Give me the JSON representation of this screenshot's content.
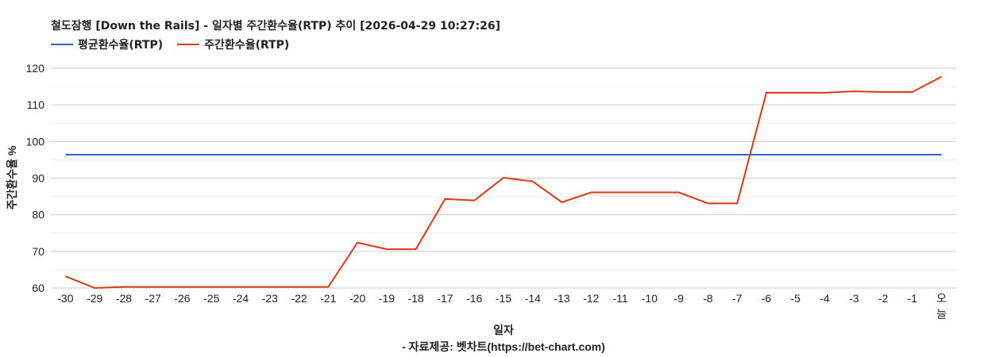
{
  "chart_data": {
    "type": "line",
    "title": "철도잠행 [Down the Rails] - 일자별 주간환수율(RTP) 추이 [2026-04-29 10:27:26]",
    "xlabel": "일자",
    "source": "- 자료제공: 벳차트(https://bet-chart.com)",
    "ylabel": "주간환수율 %",
    "ylim": [
      60,
      120
    ],
    "yticks": [
      60,
      70,
      80,
      90,
      100,
      110,
      120
    ],
    "grid": true,
    "legend": "top-left",
    "categories": [
      "-30",
      "-29",
      "-28",
      "-27",
      "-26",
      "-25",
      "-24",
      "-23",
      "-22",
      "-21",
      "-20",
      "-19",
      "-18",
      "-17",
      "-16",
      "-15",
      "-14",
      "-13",
      "-12",
      "-11",
      "-10",
      "-9",
      "-8",
      "-7",
      "-6",
      "-5",
      "-4",
      "-3",
      "-2",
      "-1",
      "오늘"
    ],
    "series": [
      {
        "name": "평균환수율(RTP)",
        "color": "#3366cc",
        "values": [
          96.4,
          96.4,
          96.4,
          96.4,
          96.4,
          96.4,
          96.4,
          96.4,
          96.4,
          96.4,
          96.4,
          96.4,
          96.4,
          96.4,
          96.4,
          96.4,
          96.4,
          96.4,
          96.4,
          96.4,
          96.4,
          96.4,
          96.4,
          96.4,
          96.4,
          96.4,
          96.4,
          96.4,
          96.4,
          96.4,
          96.4
        ]
      },
      {
        "name": "주간환수율(RTP)",
        "color": "#dc3912",
        "values": [
          63.2,
          60.0,
          60.3,
          60.3,
          60.3,
          60.3,
          60.3,
          60.3,
          60.3,
          60.3,
          72.4,
          70.6,
          70.6,
          84.3,
          83.9,
          90.1,
          89.1,
          83.4,
          86.1,
          86.1,
          86.1,
          86.1,
          83.1,
          83.1,
          113.3,
          113.3,
          113.3,
          113.7,
          113.5,
          113.5,
          117.7
        ]
      }
    ]
  }
}
